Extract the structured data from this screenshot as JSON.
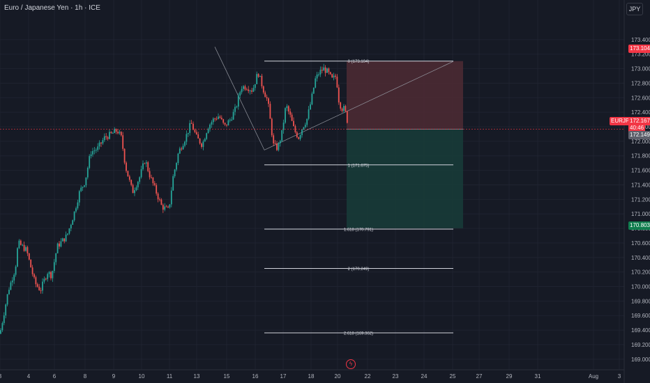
{
  "header": {
    "title": "Euro / Japanese Yen · 1h · ICE",
    "currency": "JPY"
  },
  "symbol": "EURJPY",
  "colors": {
    "up": "#26a69a",
    "down": "#ef5350",
    "background": "#161a25",
    "grid": "#1f2330",
    "risk_zone": "#4a2a33",
    "target_zone": "#173b39",
    "tag_red": "#f23645",
    "tag_green": "#0f7d4e"
  },
  "price_tags": {
    "fib0": "173.104",
    "last": "172.167",
    "countdown": "40:46",
    "prev": "172.149",
    "target": "170.803"
  },
  "chart_data": {
    "type": "candlestick",
    "title": "Euro / Japanese Yen · 1h · ICE",
    "ylim": [
      168.95,
      173.6
    ],
    "y_ticks": [
      "173.400",
      "173.200",
      "173.000",
      "172.800",
      "172.600",
      "172.400",
      "172.200",
      "172.000",
      "171.800",
      "171.600",
      "171.400",
      "171.200",
      "171.000",
      "170.800",
      "170.600",
      "170.400",
      "170.200",
      "170.000",
      "169.800",
      "169.600",
      "169.400",
      "169.200",
      "169.000"
    ],
    "x_ticks": [
      "3",
      "4",
      "6",
      "8",
      "9",
      "10",
      "11",
      "13",
      "15",
      "16",
      "17",
      "18",
      "20",
      "22",
      "23",
      "24",
      "25",
      "27",
      "29",
      "31",
      "Aug",
      "3"
    ],
    "grid": true,
    "price_path": [
      [
        0,
        169.35
      ],
      [
        12,
        169.95
      ],
      [
        22,
        170.25
      ],
      [
        26,
        170.6
      ],
      [
        38,
        170.5
      ],
      [
        50,
        170.05
      ],
      [
        58,
        169.95
      ],
      [
        68,
        170.2
      ],
      [
        74,
        170.15
      ],
      [
        82,
        170.55
      ],
      [
        96,
        170.7
      ],
      [
        106,
        171.0
      ],
      [
        114,
        171.3
      ],
      [
        122,
        171.45
      ],
      [
        130,
        171.85
      ],
      [
        140,
        171.9
      ],
      [
        150,
        172.05
      ],
      [
        160,
        172.1
      ],
      [
        168,
        172.15
      ],
      [
        174,
        172.05
      ],
      [
        180,
        171.65
      ],
      [
        190,
        171.3
      ],
      [
        200,
        171.5
      ],
      [
        208,
        171.75
      ],
      [
        214,
        171.55
      ],
      [
        222,
        171.35
      ],
      [
        232,
        171.1
      ],
      [
        242,
        171.05
      ],
      [
        248,
        171.5
      ],
      [
        256,
        171.85
      ],
      [
        266,
        172.05
      ],
      [
        274,
        172.25
      ],
      [
        282,
        172.05
      ],
      [
        290,
        171.95
      ],
      [
        298,
        172.2
      ],
      [
        306,
        172.3
      ],
      [
        314,
        172.35
      ],
      [
        322,
        172.2
      ],
      [
        330,
        172.3
      ],
      [
        338,
        172.45
      ],
      [
        346,
        172.75
      ],
      [
        354,
        172.75
      ],
      [
        362,
        172.7
      ],
      [
        370,
        172.95
      ],
      [
        378,
        172.7
      ],
      [
        384,
        172.55
      ],
      [
        392,
        171.95
      ],
      [
        398,
        171.9
      ],
      [
        404,
        172.1
      ],
      [
        410,
        172.5
      ],
      [
        416,
        172.35
      ],
      [
        422,
        172.15
      ],
      [
        428,
        172.05
      ],
      [
        434,
        172.2
      ],
      [
        440,
        172.3
      ],
      [
        446,
        172.55
      ],
      [
        452,
        172.85
      ],
      [
        458,
        172.95
      ],
      [
        464,
        173.0
      ],
      [
        470,
        172.95
      ],
      [
        476,
        172.85
      ],
      [
        482,
        172.9
      ],
      [
        486,
        172.55
      ],
      [
        490,
        172.45
      ],
      [
        494,
        172.45
      ],
      [
        498,
        172.28
      ],
      [
        501,
        172.05
      ]
    ],
    "fibonacci": [
      {
        "label": "0 (173.104)",
        "value": 173.104
      },
      {
        "label": "1 (171.675)",
        "value": 171.675
      },
      {
        "label": "1.618 (170.791)",
        "value": 170.791
      },
      {
        "label": "2 (170.249)",
        "value": 170.249
      },
      {
        "label": "2.618 (169.362)",
        "value": 169.362
      }
    ],
    "position": {
      "entry": 172.167,
      "stop": 173.104,
      "target": 170.803
    },
    "last_price": 172.167
  }
}
